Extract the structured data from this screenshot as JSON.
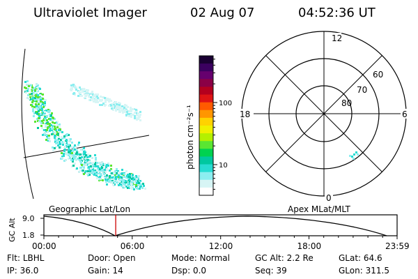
{
  "header": {
    "title": "Ultraviolet Imager",
    "date": "02 Aug 07",
    "time": "04:52:36 UT"
  },
  "colorbar": {
    "label": "photon cm⁻²s⁻¹",
    "ticks": [
      {
        "label": "100",
        "value": 100
      },
      {
        "label": "10",
        "value": 10
      }
    ],
    "colors": [
      "#1a0033",
      "#3b0060",
      "#66006e",
      "#8b0046",
      "#b4001e",
      "#de1414",
      "#ff5a00",
      "#ff9600",
      "#ffd200",
      "#f0f000",
      "#b4f000",
      "#5ae632",
      "#00d250",
      "#00c8a0",
      "#28dcd2",
      "#8ceef0",
      "#d7f5f5",
      "#ffffff"
    ]
  },
  "polar_plot": {
    "mlt_labels": [
      {
        "label": "12",
        "angle": 0
      },
      {
        "label": "6",
        "angle": 90
      },
      {
        "label": "0",
        "angle": 180
      },
      {
        "label": "18",
        "angle": 270
      }
    ],
    "lat_labels": [
      {
        "label": "60",
        "value": 60
      },
      {
        "label": "70",
        "value": 70
      },
      {
        "label": "80",
        "value": 80
      }
    ]
  },
  "timeline": {
    "label_left": "Geographic Lat/Lon",
    "label_right": "Apex MLat/MLT",
    "yaxis_title": "GC Alt",
    "ymax_label": "9.0",
    "ymin_label": "1.8",
    "xticks": [
      {
        "label": "00:00",
        "hour": 0
      },
      {
        "label": "06:00",
        "hour": 6
      },
      {
        "label": "12:00",
        "hour": 12
      },
      {
        "label": "18:00",
        "hour": 18
      },
      {
        "label": "23:59",
        "hour": 23.983
      }
    ],
    "current_hour": 4.876,
    "marker_color": "#cc0000"
  },
  "footer": [
    {
      "label": "Flt:",
      "value": "LBHL"
    },
    {
      "label": "Door:",
      "value": "Open"
    },
    {
      "label": "Mode:",
      "value": "Normal"
    },
    {
      "label": "GC Alt:",
      "value": "2.2 Re"
    },
    {
      "label": "GLat:",
      "value": "64.6"
    },
    {
      "label": "IP:",
      "value": "36.0"
    },
    {
      "label": "Gain:",
      "value": "14"
    },
    {
      "label": "Dsp:",
      "value": "0.0"
    },
    {
      "label": "Seq:",
      "value": "39"
    },
    {
      "label": "GLon:",
      "value": "311.5"
    }
  ]
}
